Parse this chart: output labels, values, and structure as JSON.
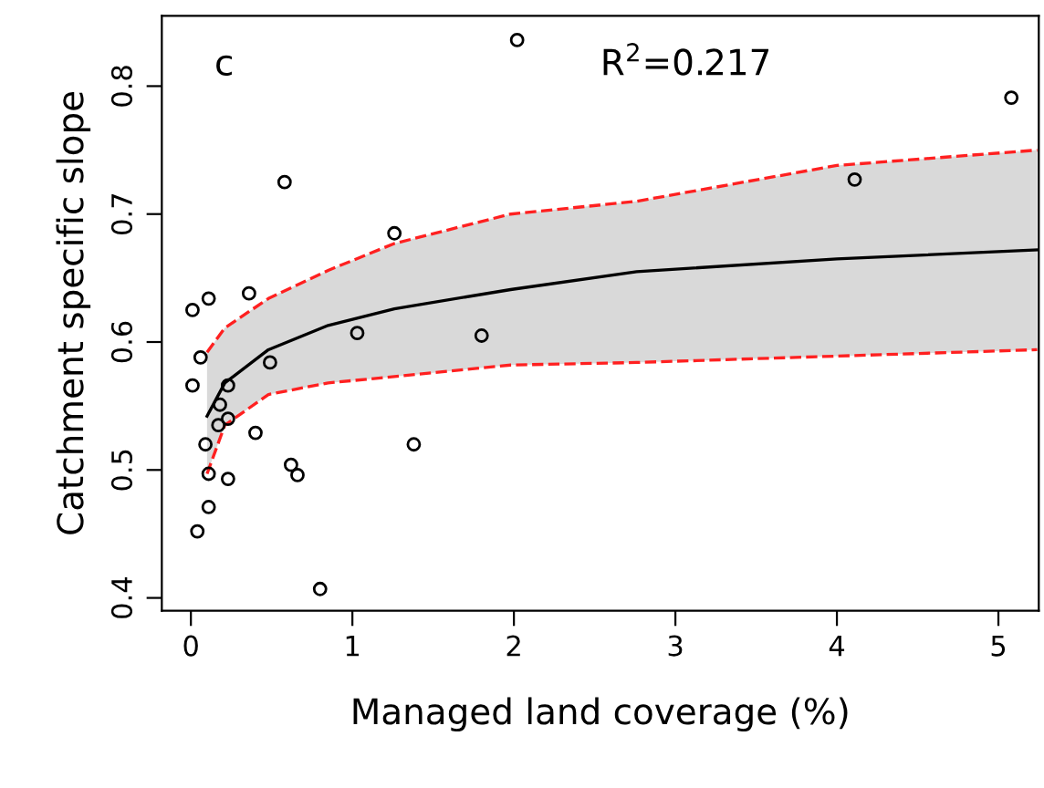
{
  "chart_data": {
    "type": "scatter",
    "xlabel": "Managed land coverage (%)",
    "ylabel": "Catchment specific slope",
    "annotations": [
      "c",
      "R$^{2}$=0.217"
    ],
    "xlim": [
      -0.18,
      5.25
    ],
    "xticks": [
      0,
      1,
      2,
      3,
      4,
      5
    ],
    "ylim": [
      0.39,
      0.855
    ],
    "yticks": [
      0.4,
      0.5,
      0.6,
      0.7,
      0.8
    ],
    "grid": false,
    "series": [
      {
        "color": "#000000",
        "marker": "circle",
        "x": [
          0.01,
          0.11,
          0.36,
          0.58,
          1.26,
          0.06,
          0.01,
          1.03,
          1.8,
          0.49,
          0.23,
          0.18,
          0.17,
          0.23,
          0.4,
          0.09,
          1.38,
          0.11,
          0.23,
          0.62,
          0.66,
          0.11,
          0.04,
          0.8,
          2.02,
          5.08,
          4.11
        ],
        "values": [
          0.625,
          0.634,
          0.638,
          0.725,
          0.685,
          0.588,
          0.566,
          0.607,
          0.605,
          0.584,
          0.566,
          0.551,
          0.535,
          0.54,
          0.529,
          0.52,
          0.52,
          0.497,
          0.493,
          0.504,
          0.496,
          0.471,
          0.452,
          0.407,
          0.836,
          0.791,
          0.727
        ]
      },
      {
        "type": "line",
        "color": "#000000",
        "line_style": "solid",
        "x": [
          0.1,
          0.21,
          0.48,
          0.85,
          1.26,
          1.98,
          2.76,
          4.0,
          5.24
        ],
        "values": [
          0.542,
          0.568,
          0.594,
          0.613,
          0.626,
          0.641,
          0.655,
          0.665,
          0.672
        ],
        "lower": [
          0.497,
          0.535,
          0.559,
          0.568,
          0.573,
          0.582,
          0.584,
          0.589,
          0.594
        ],
        "upper": [
          0.592,
          0.611,
          0.634,
          0.656,
          0.677,
          0.7,
          0.71,
          0.738,
          0.75
        ]
      },
      {
        "type": "line",
        "color": "#ff2020",
        "line_style": "dashed",
        "x": [
          0.1,
          0.21,
          0.48,
          0.85,
          1.26,
          1.98,
          2.76,
          4.0,
          5.24
        ],
        "values": [
          0.497,
          0.535,
          0.559,
          0.568,
          0.573,
          0.582,
          0.584,
          0.589,
          0.594
        ]
      },
      {
        "type": "line",
        "color": "#ff2020",
        "line_style": "dashed",
        "x": [
          0.1,
          0.21,
          0.48,
          0.85,
          1.26,
          1.98,
          2.76,
          4.0,
          5.24
        ],
        "values": [
          0.592,
          0.611,
          0.634,
          0.656,
          0.677,
          0.7,
          0.71,
          0.738,
          0.75
        ]
      }
    ]
  }
}
